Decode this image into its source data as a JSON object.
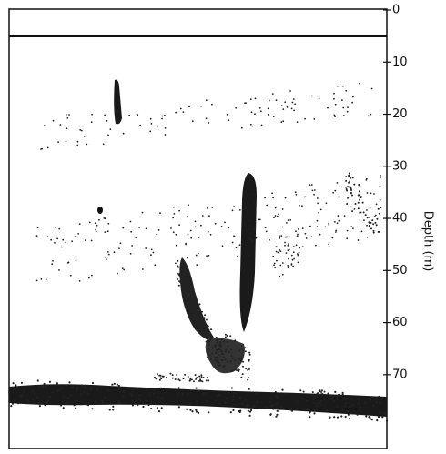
{
  "chart_data": {
    "type": "echogram",
    "ylabel": "Depth (m)",
    "ylim": [
      0,
      84
    ],
    "yticks": [
      0,
      10,
      20,
      30,
      40,
      50,
      60,
      70
    ]
  }
}
